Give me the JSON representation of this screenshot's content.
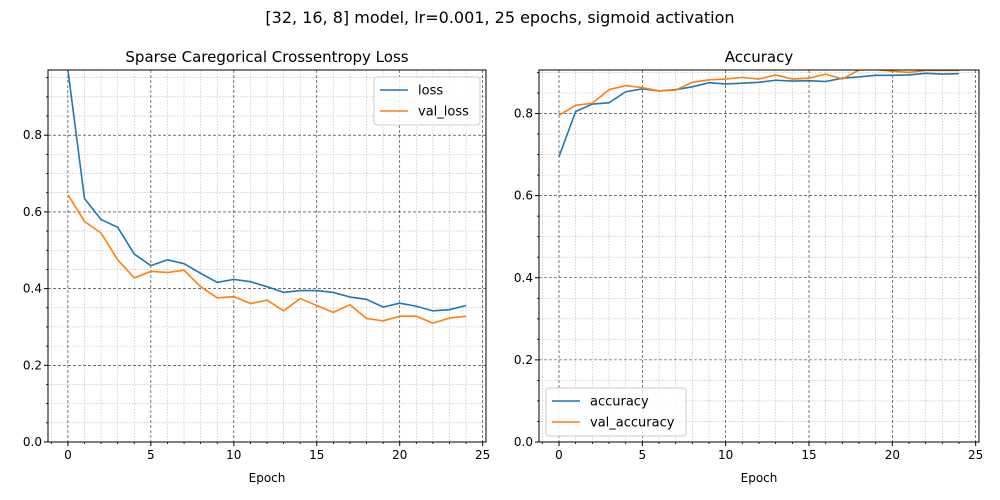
{
  "figure": {
    "suptitle": "[32, 16, 8] model, lr=0.001, 25 epochs, sigmoid activation"
  },
  "colors": {
    "series1": "#1f77b4",
    "series2": "#ff7f0e"
  },
  "chart_data": [
    {
      "type": "line",
      "title": "Sparse Caregorical Crossentropy Loss",
      "xlabel": "Epoch",
      "ylabel": "",
      "x": [
        0,
        1,
        2,
        3,
        4,
        5,
        6,
        7,
        8,
        9,
        10,
        11,
        12,
        13,
        14,
        15,
        16,
        17,
        18,
        19,
        20,
        21,
        22,
        23,
        24
      ],
      "xlim": [
        -1.2,
        25.2
      ],
      "ylim": [
        0,
        0.97
      ],
      "xticks": [
        0,
        5,
        10,
        15,
        20,
        25
      ],
      "yticks": [
        0.0,
        0.2,
        0.4,
        0.6,
        0.8
      ],
      "ytick_labels": [
        "0.0",
        "0.2",
        "0.4",
        "0.6",
        "0.8"
      ],
      "legend": "upper-right",
      "grid": true,
      "series": [
        {
          "name": "loss",
          "values": [
            0.97,
            0.635,
            0.58,
            0.56,
            0.49,
            0.46,
            0.475,
            0.465,
            0.44,
            0.416,
            0.424,
            0.418,
            0.405,
            0.39,
            0.395,
            0.395,
            0.39,
            0.378,
            0.372,
            0.352,
            0.362,
            0.354,
            0.342,
            0.345,
            0.356
          ]
        },
        {
          "name": "val_loss",
          "values": [
            0.645,
            0.575,
            0.545,
            0.475,
            0.428,
            0.445,
            0.442,
            0.448,
            0.405,
            0.376,
            0.379,
            0.361,
            0.37,
            0.342,
            0.374,
            0.356,
            0.338,
            0.358,
            0.322,
            0.316,
            0.328,
            0.328,
            0.31,
            0.323,
            0.328
          ]
        }
      ]
    },
    {
      "type": "line",
      "title": "Accuracy",
      "xlabel": "Epoch",
      "ylabel": "",
      "x": [
        0,
        1,
        2,
        3,
        4,
        5,
        6,
        7,
        8,
        9,
        10,
        11,
        12,
        13,
        14,
        15,
        16,
        17,
        18,
        19,
        20,
        21,
        22,
        23,
        24
      ],
      "xlim": [
        -1.2,
        25.2
      ],
      "ylim": [
        0,
        0.906
      ],
      "xticks": [
        0,
        5,
        10,
        15,
        20,
        25
      ],
      "yticks": [
        0.0,
        0.2,
        0.4,
        0.6,
        0.8
      ],
      "ytick_labels": [
        "0.0",
        "0.2",
        "0.4",
        "0.6",
        "0.8"
      ],
      "legend": "lower-left",
      "grid": true,
      "series": [
        {
          "name": "accuracy",
          "values": [
            0.695,
            0.805,
            0.823,
            0.826,
            0.853,
            0.86,
            0.855,
            0.858,
            0.865,
            0.875,
            0.872,
            0.874,
            0.876,
            0.881,
            0.879,
            0.88,
            0.878,
            0.886,
            0.889,
            0.893,
            0.893,
            0.894,
            0.898,
            0.896,
            0.897
          ]
        },
        {
          "name": "val_accuracy",
          "values": [
            0.796,
            0.82,
            0.825,
            0.858,
            0.868,
            0.863,
            0.855,
            0.857,
            0.876,
            0.882,
            0.884,
            0.888,
            0.884,
            0.894,
            0.884,
            0.886,
            0.896,
            0.884,
            0.906,
            0.907,
            0.903,
            0.9,
            0.905,
            0.905,
            0.905
          ]
        }
      ]
    }
  ]
}
